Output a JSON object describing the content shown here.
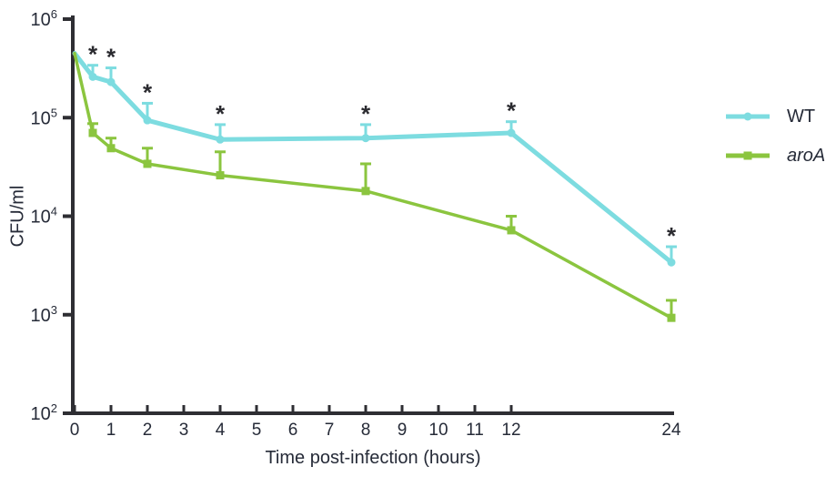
{
  "chart_data": {
    "type": "line",
    "title": "",
    "xlabel": "Time post-infection (hours)",
    "ylabel": "CFU/ml",
    "y_scale": "log10",
    "ylim": [
      100,
      1000000
    ],
    "y_tick_base": "10",
    "y_tick_exponents": [
      2,
      3,
      4,
      5,
      6
    ],
    "x_ticks": [
      0,
      1,
      2,
      3,
      4,
      5,
      6,
      7,
      8,
      9,
      10,
      11,
      12,
      24
    ],
    "x_axis_note": "hours 0-12 evenly spaced; 24 h compressed at axis end",
    "grid": false,
    "legend_position": "right-outside",
    "series": [
      {
        "name": "WT",
        "color": "#7DDCE0",
        "marker": "circle",
        "line_width": 5,
        "x": [
          0,
          0.5,
          1,
          2,
          4,
          8,
          12,
          24
        ],
        "y": [
          450000,
          260000,
          230000,
          94000,
          60000,
          62000,
          70000,
          3400
        ],
        "y_err_upper": [
          null,
          340000,
          320000,
          140000,
          85000,
          85000,
          91000,
          4900
        ]
      },
      {
        "name": "aroA",
        "color": "#8BC53F",
        "marker": "square",
        "line_width": 3.5,
        "x": [
          0,
          0.5,
          1,
          2,
          4,
          8,
          12,
          24
        ],
        "y": [
          450000,
          70000,
          49000,
          34000,
          26000,
          18000,
          7200,
          930
        ],
        "y_err_upper": [
          null,
          87000,
          62000,
          49000,
          45000,
          34000,
          10000,
          1400
        ]
      }
    ],
    "significance": {
      "symbol": "*",
      "color": "#2b2b30",
      "applies_to": "WT",
      "x": [
        0.5,
        1,
        2,
        4,
        8,
        12,
        24
      ]
    }
  },
  "legend": {
    "items": [
      {
        "label": "WT",
        "italic": false
      },
      {
        "label": "aroA",
        "italic": true
      }
    ]
  },
  "colors": {
    "axis": "#2e2e33",
    "text": "#262b38",
    "background": "#ffffff"
  }
}
